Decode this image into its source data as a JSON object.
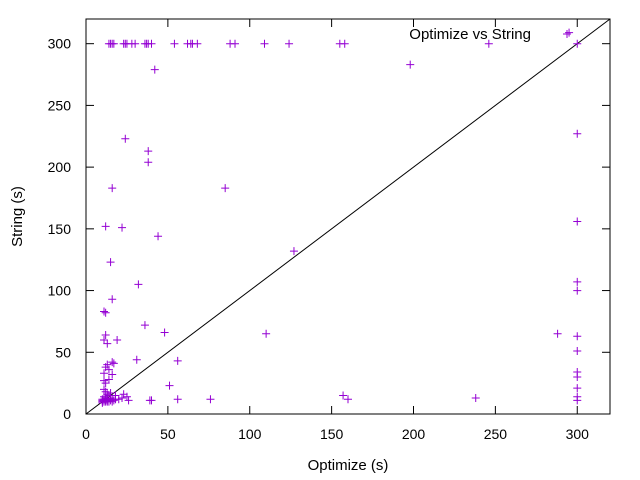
{
  "chart_data": {
    "type": "scatter",
    "title": "",
    "xlabel": "Optimize (s)",
    "ylabel": "String (s)",
    "xlim": [
      0,
      320
    ],
    "ylim": [
      0,
      320
    ],
    "xticks": [
      "0",
      "50",
      "100",
      "150",
      "200",
      "250",
      "300"
    ],
    "yticks": [
      "0",
      "50",
      "100",
      "150",
      "200",
      "250",
      "300"
    ],
    "xtick_values": [
      0,
      50,
      100,
      150,
      200,
      250,
      300
    ],
    "ytick_values": [
      0,
      50,
      100,
      150,
      200,
      250,
      300
    ],
    "grid": false,
    "legend_position": "top-right",
    "diagonal_reference_line": true,
    "series": [
      {
        "name": "Optimize vs String",
        "marker": "plus",
        "color": "#9400D3",
        "points": [
          [
            14,
            300
          ],
          [
            15,
            300
          ],
          [
            16,
            300
          ],
          [
            17,
            300
          ],
          [
            23,
            300
          ],
          [
            24,
            300
          ],
          [
            25,
            300
          ],
          [
            28,
            300
          ],
          [
            30,
            300
          ],
          [
            36,
            300
          ],
          [
            37,
            300
          ],
          [
            38,
            300
          ],
          [
            40,
            300
          ],
          [
            54,
            300
          ],
          [
            62,
            300
          ],
          [
            64,
            300
          ],
          [
            65,
            300
          ],
          [
            68,
            300
          ],
          [
            88,
            300
          ],
          [
            91,
            300
          ],
          [
            109,
            300
          ],
          [
            124,
            300
          ],
          [
            155,
            300
          ],
          [
            158,
            300
          ],
          [
            246,
            300
          ],
          [
            300,
            300
          ],
          [
            295,
            309
          ],
          [
            198,
            283
          ],
          [
            42,
            279
          ],
          [
            24,
            223
          ],
          [
            38,
            213
          ],
          [
            38,
            204
          ],
          [
            16,
            183
          ],
          [
            85,
            183
          ],
          [
            300,
            227
          ],
          [
            12,
            152
          ],
          [
            22,
            151
          ],
          [
            44,
            144
          ],
          [
            300,
            156
          ],
          [
            127,
            132
          ],
          [
            15,
            123
          ],
          [
            32,
            105
          ],
          [
            16,
            93
          ],
          [
            300,
            107
          ],
          [
            300,
            100
          ],
          [
            11,
            83
          ],
          [
            12,
            82
          ],
          [
            36,
            72
          ],
          [
            48,
            66
          ],
          [
            110,
            65
          ],
          [
            288,
            65
          ],
          [
            12,
            64
          ],
          [
            11,
            60
          ],
          [
            13,
            57
          ],
          [
            19,
            60
          ],
          [
            300,
            63
          ],
          [
            300,
            51
          ],
          [
            13,
            40
          ],
          [
            12,
            38
          ],
          [
            16,
            42
          ],
          [
            17,
            41
          ],
          [
            31,
            44
          ],
          [
            56,
            43
          ],
          [
            11,
            33
          ],
          [
            14,
            36
          ],
          [
            16,
            32
          ],
          [
            14,
            28
          ],
          [
            11,
            27
          ],
          [
            12,
            25
          ],
          [
            51,
            23
          ],
          [
            300,
            34
          ],
          [
            300,
            30
          ],
          [
            300,
            21
          ],
          [
            300,
            14
          ],
          [
            300,
            11
          ],
          [
            11,
            20
          ],
          [
            12,
            18
          ],
          [
            13,
            16
          ],
          [
            14,
            15
          ],
          [
            15,
            17
          ],
          [
            18,
            15
          ],
          [
            22,
            13
          ],
          [
            23,
            16
          ],
          [
            25,
            14
          ],
          [
            157,
            15
          ],
          [
            160,
            12
          ],
          [
            238,
            13
          ],
          [
            10,
            9
          ],
          [
            10,
            10
          ],
          [
            10,
            11
          ],
          [
            10,
            12
          ],
          [
            11,
            10
          ],
          [
            11,
            11
          ],
          [
            11,
            12
          ],
          [
            11,
            14
          ],
          [
            12,
            10
          ],
          [
            12,
            11
          ],
          [
            12,
            12
          ],
          [
            12,
            13
          ],
          [
            13,
            10
          ],
          [
            13,
            11
          ],
          [
            13,
            12
          ],
          [
            13,
            13
          ],
          [
            14,
            10
          ],
          [
            14,
            12
          ],
          [
            15,
            11
          ],
          [
            15,
            13
          ],
          [
            16,
            10
          ],
          [
            16,
            12
          ],
          [
            17,
            11
          ],
          [
            18,
            12
          ],
          [
            20,
            12
          ],
          [
            26,
            11
          ],
          [
            39,
            11
          ],
          [
            40,
            11
          ],
          [
            56,
            12
          ],
          [
            76,
            12
          ]
        ]
      }
    ]
  }
}
